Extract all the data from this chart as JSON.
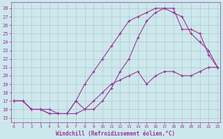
{
  "xlabel": "Windchill (Refroidissement éolien,°C)",
  "bg_color": "#cde8ec",
  "grid_color": "#b0c8cc",
  "line_color": "#993399",
  "line1_x": [
    0,
    1,
    2,
    3,
    4,
    5,
    6,
    7,
    8,
    9,
    10,
    11,
    12,
    13,
    14,
    15,
    16,
    17,
    18,
    19,
    20,
    21,
    22,
    23
  ],
  "line1_y": [
    17.0,
    17.0,
    16.0,
    16.0,
    15.5,
    15.5,
    15.5,
    15.5,
    16.0,
    16.0,
    17.0,
    18.5,
    20.5,
    22.0,
    24.5,
    26.5,
    27.5,
    28.0,
    27.5,
    27.0,
    25.0,
    24.0,
    23.0,
    21.0
  ],
  "line2_x": [
    0,
    1,
    2,
    3,
    4,
    5,
    6,
    7,
    8,
    9,
    10,
    11,
    12,
    13,
    14,
    15,
    16,
    17,
    18,
    19,
    20,
    21,
    22,
    23
  ],
  "line2_y": [
    17.0,
    17.0,
    16.0,
    16.0,
    16.0,
    15.5,
    15.5,
    17.0,
    16.0,
    17.0,
    18.0,
    19.0,
    19.5,
    20.0,
    20.5,
    19.0,
    20.0,
    20.5,
    20.5,
    20.0,
    20.0,
    20.5,
    21.0,
    21.0
  ],
  "line3_x": [
    0,
    1,
    2,
    3,
    4,
    5,
    6,
    7,
    8,
    9,
    10,
    11,
    12,
    13,
    14,
    15,
    16,
    17,
    18,
    19,
    20,
    21,
    22,
    23
  ],
  "line3_y": [
    17.0,
    17.0,
    16.0,
    16.0,
    15.5,
    15.5,
    15.5,
    17.0,
    19.0,
    20.5,
    22.0,
    23.5,
    25.0,
    26.5,
    27.0,
    27.5,
    28.0,
    28.0,
    28.0,
    25.5,
    25.5,
    25.0,
    22.5,
    21.0
  ],
  "yticks": [
    15,
    16,
    17,
    18,
    19,
    20,
    21,
    22,
    23,
    24,
    25,
    26,
    27,
    28
  ],
  "xticks": [
    0,
    1,
    2,
    3,
    4,
    5,
    6,
    7,
    8,
    9,
    10,
    11,
    12,
    13,
    14,
    15,
    16,
    17,
    18,
    19,
    20,
    21,
    22,
    23
  ],
  "ylim": [
    14.5,
    28.7
  ],
  "xlim": [
    -0.3,
    23.3
  ]
}
